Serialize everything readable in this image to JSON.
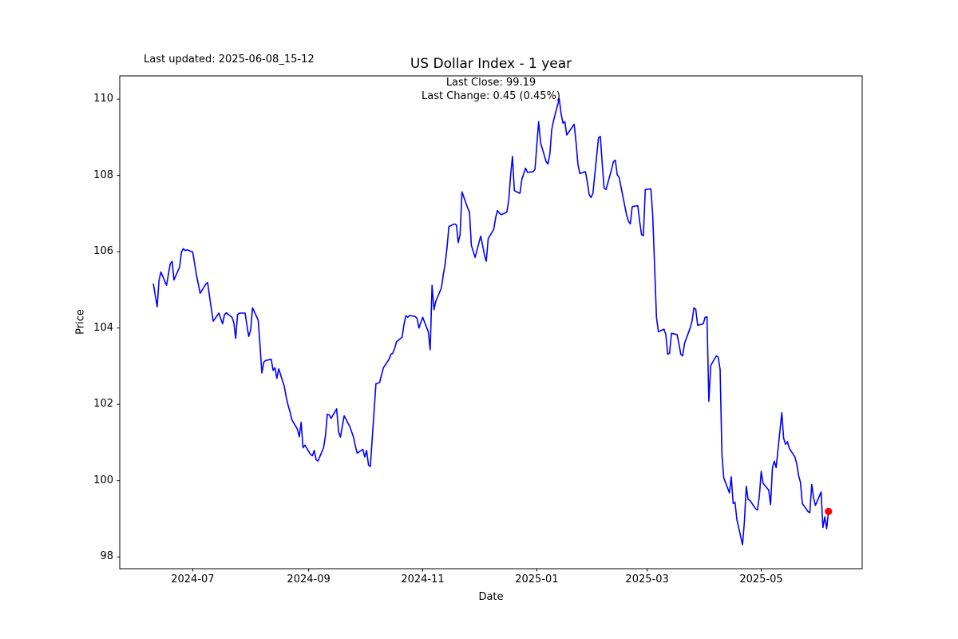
{
  "figure": {
    "last_updated": "Last updated: 2025-06-08_15-12",
    "title": "US Dollar Index - 1 year",
    "subtitle_line1": "Last Close: 99.19",
    "subtitle_line2": "Last Change: 0.45 (0.45%)"
  },
  "chart_data": {
    "type": "line",
    "title": "US Dollar Index - 1 year",
    "xlabel": "Date",
    "ylabel": "Price",
    "grid": false,
    "legend": null,
    "background": "#ffffff",
    "line_color": "#0000ff",
    "line_width": 1.6,
    "marker_color": "#ff0000",
    "spine_color": "#000000",
    "last_close": 99.19,
    "last_change": "0.45 (0.45%)",
    "xlim": [
      "2024-05-23",
      "2025-06-24"
    ],
    "ylim": [
      97.69,
      110.61
    ],
    "yticks": [
      98,
      100,
      102,
      104,
      106,
      108,
      110
    ],
    "xticks": [
      {
        "date": "2024-07-01",
        "label": "2024-07"
      },
      {
        "date": "2024-09-01",
        "label": "2024-09"
      },
      {
        "date": "2024-11-01",
        "label": "2024-11"
      },
      {
        "date": "2025-01-01",
        "label": "2025-01"
      },
      {
        "date": "2025-03-01",
        "label": "2025-03"
      },
      {
        "date": "2025-05-01",
        "label": "2025-05"
      }
    ],
    "series": [
      {
        "name": "US Dollar Index",
        "points": [
          [
            "2024-06-10",
            105.15
          ],
          [
            "2024-06-11",
            104.85
          ],
          [
            "2024-06-12",
            104.56
          ],
          [
            "2024-06-13",
            105.25
          ],
          [
            "2024-06-14",
            105.47
          ],
          [
            "2024-06-17",
            105.12
          ],
          [
            "2024-06-18",
            105.4
          ],
          [
            "2024-06-19",
            105.68
          ],
          [
            "2024-06-20",
            105.75
          ],
          [
            "2024-06-21",
            105.26
          ],
          [
            "2024-06-24",
            105.6
          ],
          [
            "2024-06-25",
            105.99
          ],
          [
            "2024-06-26",
            106.08
          ],
          [
            "2024-06-27",
            106.03
          ],
          [
            "2024-06-28",
            106.05
          ],
          [
            "2024-07-01",
            105.99
          ],
          [
            "2024-07-02",
            105.7
          ],
          [
            "2024-07-03",
            105.4
          ],
          [
            "2024-07-05",
            104.91
          ],
          [
            "2024-07-08",
            105.15
          ],
          [
            "2024-07-09",
            105.19
          ],
          [
            "2024-07-10",
            104.84
          ],
          [
            "2024-07-11",
            104.49
          ],
          [
            "2024-07-12",
            104.18
          ],
          [
            "2024-07-15",
            104.39
          ],
          [
            "2024-07-16",
            104.25
          ],
          [
            "2024-07-17",
            104.11
          ],
          [
            "2024-07-18",
            104.35
          ],
          [
            "2024-07-19",
            104.4
          ],
          [
            "2024-07-22",
            104.28
          ],
          [
            "2024-07-23",
            104.14
          ],
          [
            "2024-07-24",
            103.73
          ],
          [
            "2024-07-25",
            104.35
          ],
          [
            "2024-07-26",
            104.39
          ],
          [
            "2024-07-29",
            104.39
          ],
          [
            "2024-07-30",
            104.07
          ],
          [
            "2024-07-31",
            103.78
          ],
          [
            "2024-08-01",
            103.95
          ],
          [
            "2024-08-02",
            104.53
          ],
          [
            "2024-08-05",
            104.21
          ],
          [
            "2024-08-06",
            103.55
          ],
          [
            "2024-08-07",
            102.82
          ],
          [
            "2024-08-08",
            103.1
          ],
          [
            "2024-08-09",
            103.15
          ],
          [
            "2024-08-12",
            103.18
          ],
          [
            "2024-08-13",
            102.89
          ],
          [
            "2024-08-14",
            102.96
          ],
          [
            "2024-08-15",
            102.68
          ],
          [
            "2024-08-16",
            102.93
          ],
          [
            "2024-08-19",
            102.47
          ],
          [
            "2024-08-20",
            102.19
          ],
          [
            "2024-08-21",
            101.98
          ],
          [
            "2024-08-22",
            101.81
          ],
          [
            "2024-08-23",
            101.6
          ],
          [
            "2024-08-26",
            101.35
          ],
          [
            "2024-08-27",
            101.15
          ],
          [
            "2024-08-28",
            101.53
          ],
          [
            "2024-08-29",
            100.86
          ],
          [
            "2024-08-30",
            100.93
          ],
          [
            "2024-09-02",
            100.69
          ],
          [
            "2024-09-03",
            100.65
          ],
          [
            "2024-09-04",
            100.79
          ],
          [
            "2024-09-05",
            100.55
          ],
          [
            "2024-09-06",
            100.51
          ],
          [
            "2024-09-09",
            100.86
          ],
          [
            "2024-09-10",
            101.18
          ],
          [
            "2024-09-11",
            101.74
          ],
          [
            "2024-09-12",
            101.72
          ],
          [
            "2024-09-13",
            101.63
          ],
          [
            "2024-09-16",
            101.88
          ],
          [
            "2024-09-17",
            101.28
          ],
          [
            "2024-09-18",
            101.14
          ],
          [
            "2024-09-19",
            101.42
          ],
          [
            "2024-09-20",
            101.7
          ],
          [
            "2024-09-23",
            101.42
          ],
          [
            "2024-09-24",
            101.28
          ],
          [
            "2024-09-25",
            101.14
          ],
          [
            "2024-09-26",
            100.9
          ],
          [
            "2024-09-27",
            100.72
          ],
          [
            "2024-09-30",
            100.82
          ],
          [
            "2024-10-01",
            100.62
          ],
          [
            "2024-10-02",
            100.79
          ],
          [
            "2024-10-03",
            100.41
          ],
          [
            "2024-10-04",
            100.37
          ],
          [
            "2024-10-07",
            102.54
          ],
          [
            "2024-10-08",
            102.55
          ],
          [
            "2024-10-09",
            102.58
          ],
          [
            "2024-10-10",
            102.78
          ],
          [
            "2024-10-11",
            102.96
          ],
          [
            "2024-10-14",
            103.18
          ],
          [
            "2024-10-15",
            103.31
          ],
          [
            "2024-10-16",
            103.34
          ],
          [
            "2024-10-17",
            103.47
          ],
          [
            "2024-10-18",
            103.64
          ],
          [
            "2024-10-21",
            103.76
          ],
          [
            "2024-10-22",
            104.1
          ],
          [
            "2024-10-23",
            104.32
          ],
          [
            "2024-10-24",
            104.28
          ],
          [
            "2024-10-25",
            104.33
          ],
          [
            "2024-10-28",
            104.3
          ],
          [
            "2024-10-29",
            104.25
          ],
          [
            "2024-10-30",
            104.0
          ],
          [
            "2024-10-31",
            104.15
          ],
          [
            "2024-11-01",
            104.28
          ],
          [
            "2024-11-04",
            103.9
          ],
          [
            "2024-11-05",
            103.43
          ],
          [
            "2024-11-06",
            105.12
          ],
          [
            "2024-11-07",
            104.48
          ],
          [
            "2024-11-08",
            104.7
          ],
          [
            "2024-11-11",
            105.05
          ],
          [
            "2024-11-12",
            105.4
          ],
          [
            "2024-11-13",
            105.68
          ],
          [
            "2024-11-14",
            106.1
          ],
          [
            "2024-11-15",
            106.66
          ],
          [
            "2024-11-18",
            106.73
          ],
          [
            "2024-11-19",
            106.7
          ],
          [
            "2024-11-20",
            106.24
          ],
          [
            "2024-11-21",
            106.45
          ],
          [
            "2024-11-22",
            107.57
          ],
          [
            "2024-11-25",
            107.15
          ],
          [
            "2024-11-26",
            107.04
          ],
          [
            "2024-11-27",
            106.17
          ],
          [
            "2024-11-29",
            105.85
          ],
          [
            "2024-12-02",
            106.41
          ],
          [
            "2024-12-03",
            106.17
          ],
          [
            "2024-12-04",
            105.92
          ],
          [
            "2024-12-05",
            105.75
          ],
          [
            "2024-12-06",
            106.34
          ],
          [
            "2024-12-09",
            106.59
          ],
          [
            "2024-12-10",
            106.9
          ],
          [
            "2024-12-11",
            107.08
          ],
          [
            "2024-12-12",
            107.01
          ],
          [
            "2024-12-13",
            106.97
          ],
          [
            "2024-12-16",
            107.04
          ],
          [
            "2024-12-17",
            107.36
          ],
          [
            "2024-12-18",
            108.0
          ],
          [
            "2024-12-19",
            108.5
          ],
          [
            "2024-12-20",
            107.6
          ],
          [
            "2024-12-23",
            107.53
          ],
          [
            "2024-12-24",
            107.9
          ],
          [
            "2024-12-26",
            108.19
          ],
          [
            "2024-12-27",
            108.08
          ],
          [
            "2024-12-30",
            108.1
          ],
          [
            "2024-12-31",
            108.16
          ],
          [
            "2025-01-02",
            109.41
          ],
          [
            "2025-01-03",
            108.86
          ],
          [
            "2025-01-06",
            108.36
          ],
          [
            "2025-01-07",
            108.3
          ],
          [
            "2025-01-08",
            108.57
          ],
          [
            "2025-01-09",
            109.2
          ],
          [
            "2025-01-10",
            109.45
          ],
          [
            "2025-01-13",
            110.01
          ],
          [
            "2025-01-14",
            109.62
          ],
          [
            "2025-01-15",
            109.37
          ],
          [
            "2025-01-16",
            109.41
          ],
          [
            "2025-01-17",
            109.06
          ],
          [
            "2025-01-21",
            109.34
          ],
          [
            "2025-01-22",
            108.86
          ],
          [
            "2025-01-23",
            108.3
          ],
          [
            "2025-01-24",
            108.05
          ],
          [
            "2025-01-27",
            108.1
          ],
          [
            "2025-01-28",
            107.84
          ],
          [
            "2025-01-29",
            107.5
          ],
          [
            "2025-01-30",
            107.42
          ],
          [
            "2025-01-31",
            107.53
          ],
          [
            "2025-02-03",
            108.99
          ],
          [
            "2025-02-04",
            109.02
          ],
          [
            "2025-02-05",
            108.3
          ],
          [
            "2025-02-06",
            107.67
          ],
          [
            "2025-02-07",
            107.63
          ],
          [
            "2025-02-10",
            108.16
          ],
          [
            "2025-02-11",
            108.36
          ],
          [
            "2025-02-12",
            108.4
          ],
          [
            "2025-02-13",
            108.02
          ],
          [
            "2025-02-14",
            107.95
          ],
          [
            "2025-02-18",
            106.97
          ],
          [
            "2025-02-19",
            106.8
          ],
          [
            "2025-02-20",
            106.73
          ],
          [
            "2025-02-21",
            107.18
          ],
          [
            "2025-02-24",
            107.21
          ],
          [
            "2025-02-25",
            106.8
          ],
          [
            "2025-02-26",
            106.45
          ],
          [
            "2025-02-27",
            106.42
          ],
          [
            "2025-02-28",
            107.63
          ],
          [
            "2025-03-03",
            107.65
          ],
          [
            "2025-03-04",
            106.97
          ],
          [
            "2025-03-05",
            105.6
          ],
          [
            "2025-03-06",
            104.28
          ],
          [
            "2025-03-07",
            103.9
          ],
          [
            "2025-03-10",
            103.97
          ],
          [
            "2025-03-11",
            103.83
          ],
          [
            "2025-03-12",
            103.31
          ],
          [
            "2025-03-13",
            103.34
          ],
          [
            "2025-03-14",
            103.86
          ],
          [
            "2025-03-17",
            103.83
          ],
          [
            "2025-03-18",
            103.59
          ],
          [
            "2025-03-19",
            103.31
          ],
          [
            "2025-03-20",
            103.27
          ],
          [
            "2025-03-21",
            103.6
          ],
          [
            "2025-03-24",
            104.0
          ],
          [
            "2025-03-25",
            104.18
          ],
          [
            "2025-03-26",
            104.53
          ],
          [
            "2025-03-27",
            104.49
          ],
          [
            "2025-03-28",
            104.07
          ],
          [
            "2025-03-31",
            104.11
          ],
          [
            "2025-04-01",
            104.28
          ],
          [
            "2025-04-02",
            104.29
          ],
          [
            "2025-04-03",
            102.08
          ],
          [
            "2025-04-04",
            103.02
          ],
          [
            "2025-04-07",
            103.27
          ],
          [
            "2025-04-08",
            103.24
          ],
          [
            "2025-04-09",
            102.92
          ],
          [
            "2025-04-10",
            100.69
          ],
          [
            "2025-04-11",
            100.07
          ],
          [
            "2025-04-14",
            99.68
          ],
          [
            "2025-04-15",
            100.1
          ],
          [
            "2025-04-16",
            99.4
          ],
          [
            "2025-04-17",
            99.43
          ],
          [
            "2025-04-18",
            98.98
          ],
          [
            "2025-04-21",
            98.32
          ],
          [
            "2025-04-22",
            98.91
          ],
          [
            "2025-04-23",
            99.85
          ],
          [
            "2025-04-24",
            99.51
          ],
          [
            "2025-04-25",
            99.48
          ],
          [
            "2025-04-28",
            99.26
          ],
          [
            "2025-04-29",
            99.23
          ],
          [
            "2025-04-30",
            99.6
          ],
          [
            "2025-05-01",
            100.24
          ],
          [
            "2025-05-02",
            99.93
          ],
          [
            "2025-05-05",
            99.75
          ],
          [
            "2025-05-06",
            99.37
          ],
          [
            "2025-05-07",
            100.34
          ],
          [
            "2025-05-08",
            100.51
          ],
          [
            "2025-05-09",
            100.34
          ],
          [
            "2025-05-12",
            101.78
          ],
          [
            "2025-05-13",
            101.11
          ],
          [
            "2025-05-14",
            100.95
          ],
          [
            "2025-05-15",
            101.02
          ],
          [
            "2025-05-16",
            100.85
          ],
          [
            "2025-05-19",
            100.62
          ],
          [
            "2025-05-20",
            100.44
          ],
          [
            "2025-05-21",
            100.13
          ],
          [
            "2025-05-22",
            99.95
          ],
          [
            "2025-05-23",
            99.4
          ],
          [
            "2025-05-26",
            99.19
          ],
          [
            "2025-05-27",
            99.16
          ],
          [
            "2025-05-28",
            99.9
          ],
          [
            "2025-05-29",
            99.55
          ],
          [
            "2025-05-30",
            99.35
          ],
          [
            "2025-06-02",
            99.7
          ],
          [
            "2025-06-03",
            98.77
          ],
          [
            "2025-06-04",
            99.05
          ],
          [
            "2025-06-05",
            98.74
          ],
          [
            "2025-06-06",
            99.19
          ]
        ]
      }
    ]
  }
}
